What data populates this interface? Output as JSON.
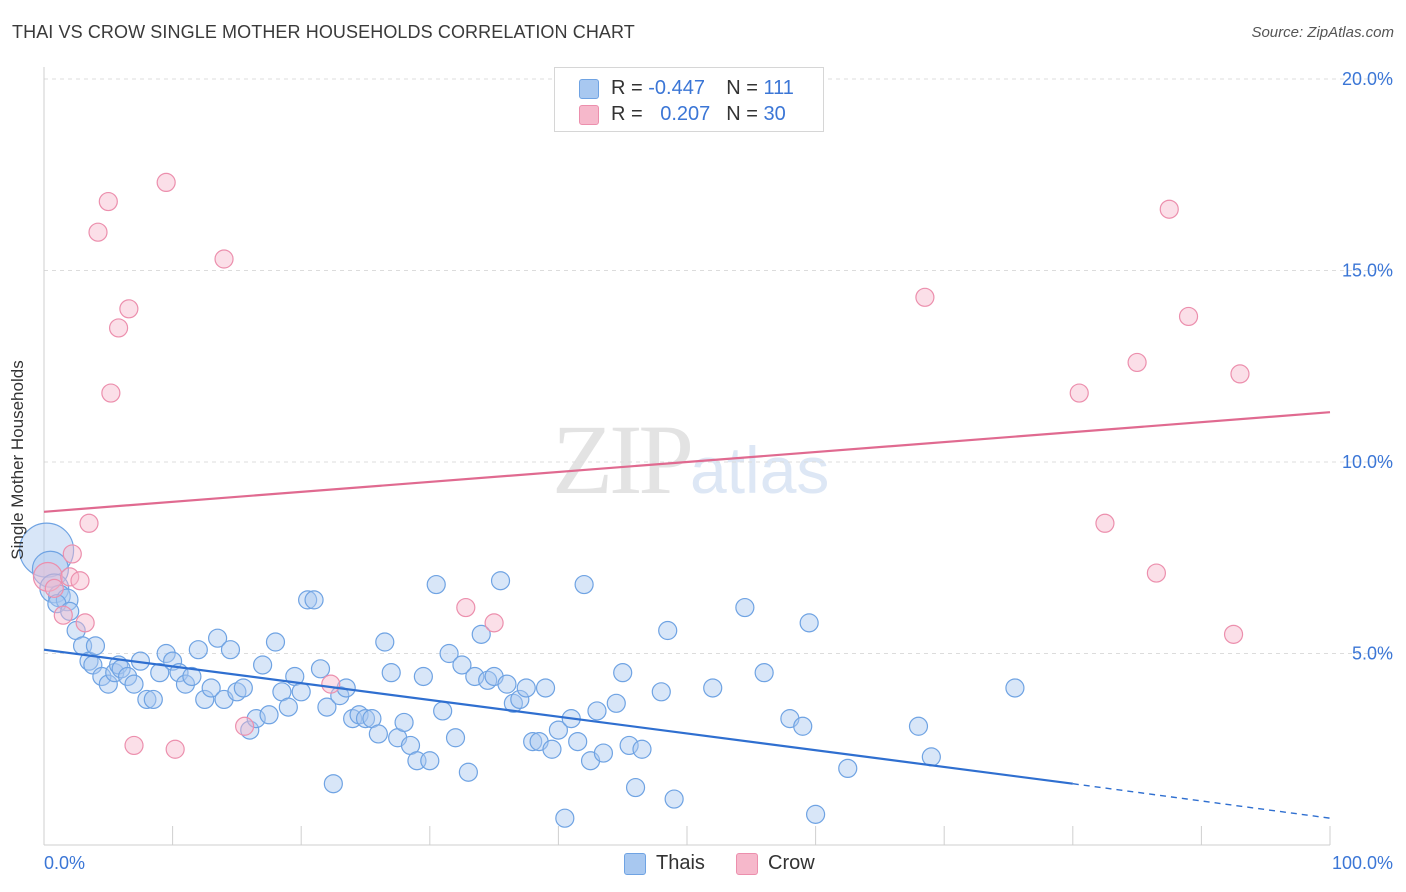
{
  "title": "THAI VS CROW SINGLE MOTHER HOUSEHOLDS CORRELATION CHART",
  "source": "Source: ZipAtlas.com",
  "watermark": {
    "zip": "ZIP",
    "atlas": "atlas"
  },
  "legend_top": [
    {
      "r_label": "R =",
      "r_value": "-0.447",
      "n_label": "N =",
      "n_value": "111",
      "color": "#a8c8f0"
    },
    {
      "r_label": "R =",
      "r_value": "0.207",
      "n_label": "N =",
      "n_value": "30",
      "color": "#f6b8cb"
    }
  ],
  "legend_bottom": [
    {
      "label": "Thais",
      "color": "#a8c8f0"
    },
    {
      "label": "Crow",
      "color": "#f6b8cb"
    }
  ],
  "chart_data": {
    "type": "scatter",
    "title": "THAI VS CROW SINGLE MOTHER HOUSEHOLDS CORRELATION CHART",
    "xlabel": "",
    "ylabel": "Single Mother Households",
    "xlim": [
      0,
      100
    ],
    "ylim": [
      0,
      20
    ],
    "x_tick_labels": [
      "0.0%",
      "100.0%"
    ],
    "y_tick_labels": [
      "5.0%",
      "10.0%",
      "15.0%",
      "20.0%"
    ],
    "y_ticks": [
      5,
      10,
      15,
      20
    ],
    "grid": true,
    "legend_position": "top-center",
    "series": [
      {
        "name": "Thais",
        "color": "#6fa3e3",
        "fill": "#a8c8f0",
        "trend_color": "#2f6fd0",
        "trend": {
          "x0": 0,
          "y0": 5.1,
          "x1": 80,
          "y1": 1.6,
          "dashed_to_x": 100,
          "dashed_to_y": 0.7
        },
        "points": [
          [
            0.2,
            7.7,
            3
          ],
          [
            0.5,
            7.2,
            2
          ],
          [
            0.8,
            6.7,
            1.6
          ],
          [
            1.2,
            6.5,
            1.2
          ],
          [
            1.8,
            6.4,
            1.2
          ],
          [
            1.0,
            6.3,
            1
          ],
          [
            2.0,
            6.1,
            1
          ],
          [
            2.5,
            5.6,
            1
          ],
          [
            3.0,
            5.2,
            1
          ],
          [
            3.5,
            4.8,
            1
          ],
          [
            3.8,
            4.7,
            1
          ],
          [
            4.0,
            5.2,
            1
          ],
          [
            4.5,
            4.4,
            1
          ],
          [
            5.0,
            4.2,
            1
          ],
          [
            5.5,
            4.5,
            1
          ],
          [
            5.8,
            4.7,
            1
          ],
          [
            6.0,
            4.6,
            1
          ],
          [
            6.5,
            4.4,
            1
          ],
          [
            7.0,
            4.2,
            1
          ],
          [
            7.5,
            4.8,
            1
          ],
          [
            8.0,
            3.8,
            1
          ],
          [
            8.5,
            3.8,
            1
          ],
          [
            9.0,
            4.5,
            1
          ],
          [
            9.5,
            5.0,
            1
          ],
          [
            10.0,
            4.8,
            1
          ],
          [
            10.5,
            4.5,
            1
          ],
          [
            11.0,
            4.2,
            1
          ],
          [
            11.5,
            4.4,
            1
          ],
          [
            12.0,
            5.1,
            1
          ],
          [
            12.5,
            3.8,
            1
          ],
          [
            13.0,
            4.1,
            1
          ],
          [
            13.5,
            5.4,
            1
          ],
          [
            14.0,
            3.8,
            1
          ],
          [
            14.5,
            5.1,
            1
          ],
          [
            15.0,
            4.0,
            1
          ],
          [
            15.5,
            4.1,
            1
          ],
          [
            16.0,
            3.0,
            1
          ],
          [
            16.5,
            3.3,
            1
          ],
          [
            17.0,
            4.7,
            1
          ],
          [
            17.5,
            3.4,
            1
          ],
          [
            18.0,
            5.3,
            1
          ],
          [
            18.5,
            4.0,
            1
          ],
          [
            19.0,
            3.6,
            1
          ],
          [
            19.5,
            4.4,
            1
          ],
          [
            20.0,
            4.0,
            1
          ],
          [
            20.5,
            6.4,
            1
          ],
          [
            21.0,
            6.4,
            1
          ],
          [
            21.5,
            4.6,
            1
          ],
          [
            22.0,
            3.6,
            1
          ],
          [
            22.5,
            1.6,
            1
          ],
          [
            23.0,
            3.9,
            1
          ],
          [
            23.5,
            4.1,
            1
          ],
          [
            24.0,
            3.3,
            1
          ],
          [
            24.5,
            3.4,
            1
          ],
          [
            25.0,
            3.3,
            1
          ],
          [
            25.5,
            3.3,
            1
          ],
          [
            26.0,
            2.9,
            1
          ],
          [
            26.5,
            5.3,
            1
          ],
          [
            27.0,
            4.5,
            1
          ],
          [
            27.5,
            2.8,
            1
          ],
          [
            28.0,
            3.2,
            1
          ],
          [
            28.5,
            2.6,
            1
          ],
          [
            29.0,
            2.2,
            1
          ],
          [
            29.5,
            4.4,
            1
          ],
          [
            30.0,
            2.2,
            1
          ],
          [
            30.5,
            6.8,
            1
          ],
          [
            31.0,
            3.5,
            1
          ],
          [
            31.5,
            5.0,
            1
          ],
          [
            32.0,
            2.8,
            1
          ],
          [
            32.5,
            4.7,
            1
          ],
          [
            33.0,
            1.9,
            1
          ],
          [
            33.5,
            4.4,
            1
          ],
          [
            34.0,
            5.5,
            1
          ],
          [
            34.5,
            4.3,
            1
          ],
          [
            35.0,
            4.4,
            1
          ],
          [
            35.5,
            6.9,
            1
          ],
          [
            36.0,
            4.2,
            1
          ],
          [
            36.5,
            3.7,
            1
          ],
          [
            37.0,
            3.8,
            1
          ],
          [
            37.5,
            4.1,
            1
          ],
          [
            38.0,
            2.7,
            1
          ],
          [
            38.5,
            2.7,
            1
          ],
          [
            39.0,
            4.1,
            1
          ],
          [
            39.5,
            2.5,
            1
          ],
          [
            40.0,
            3.0,
            1
          ],
          [
            40.5,
            0.7,
            1
          ],
          [
            41.0,
            3.3,
            1
          ],
          [
            41.5,
            2.7,
            1
          ],
          [
            42.0,
            6.8,
            1
          ],
          [
            42.5,
            2.2,
            1
          ],
          [
            43.0,
            3.5,
            1
          ],
          [
            43.5,
            2.4,
            1
          ],
          [
            44.5,
            3.7,
            1
          ],
          [
            45.0,
            4.5,
            1
          ],
          [
            45.5,
            2.6,
            1
          ],
          [
            46.0,
            1.5,
            1
          ],
          [
            46.5,
            2.5,
            1
          ],
          [
            48.0,
            4.0,
            1
          ],
          [
            48.5,
            5.6,
            1
          ],
          [
            49.0,
            1.2,
            1
          ],
          [
            52.0,
            4.1,
            1
          ],
          [
            54.5,
            6.2,
            1
          ],
          [
            56.0,
            4.5,
            1
          ],
          [
            58.0,
            3.3,
            1
          ],
          [
            59.0,
            3.1,
            1
          ],
          [
            59.5,
            5.8,
            1
          ],
          [
            60.0,
            0.8,
            1
          ],
          [
            62.5,
            2.0,
            1
          ],
          [
            68.0,
            3.1,
            1
          ],
          [
            69.0,
            2.3,
            1
          ],
          [
            75.5,
            4.1,
            1
          ]
        ]
      },
      {
        "name": "Crow",
        "color": "#ec8fad",
        "fill": "#f6b8cb",
        "trend_color": "#e06a90",
        "trend": {
          "x0": 0,
          "y0": 8.7,
          "x1": 100,
          "y1": 11.3
        },
        "points": [
          [
            0.3,
            7.0,
            1.6
          ],
          [
            0.8,
            6.7,
            1
          ],
          [
            1.5,
            6.0,
            1
          ],
          [
            2.0,
            7.0,
            1
          ],
          [
            2.2,
            7.6,
            1
          ],
          [
            2.8,
            6.9,
            1
          ],
          [
            3.2,
            5.8,
            1
          ],
          [
            3.5,
            8.4,
            1
          ],
          [
            4.2,
            16.0,
            1
          ],
          [
            5.0,
            16.8,
            1
          ],
          [
            5.2,
            11.8,
            1
          ],
          [
            5.8,
            13.5,
            1
          ],
          [
            6.6,
            14.0,
            1
          ],
          [
            7.0,
            2.6,
            1
          ],
          [
            9.5,
            17.3,
            1
          ],
          [
            10.2,
            2.5,
            1
          ],
          [
            14.0,
            15.3,
            1
          ],
          [
            15.6,
            3.1,
            1
          ],
          [
            22.3,
            4.2,
            1
          ],
          [
            32.8,
            6.2,
            1
          ],
          [
            35.0,
            5.8,
            1
          ],
          [
            68.5,
            14.3,
            1
          ],
          [
            80.5,
            11.8,
            1
          ],
          [
            82.5,
            8.4,
            1
          ],
          [
            85.0,
            12.6,
            1
          ],
          [
            86.5,
            7.1,
            1
          ],
          [
            87.5,
            16.6,
            1
          ],
          [
            89.0,
            13.8,
            1
          ],
          [
            92.5,
            5.5,
            1
          ],
          [
            93.0,
            12.3,
            1
          ]
        ]
      }
    ]
  }
}
